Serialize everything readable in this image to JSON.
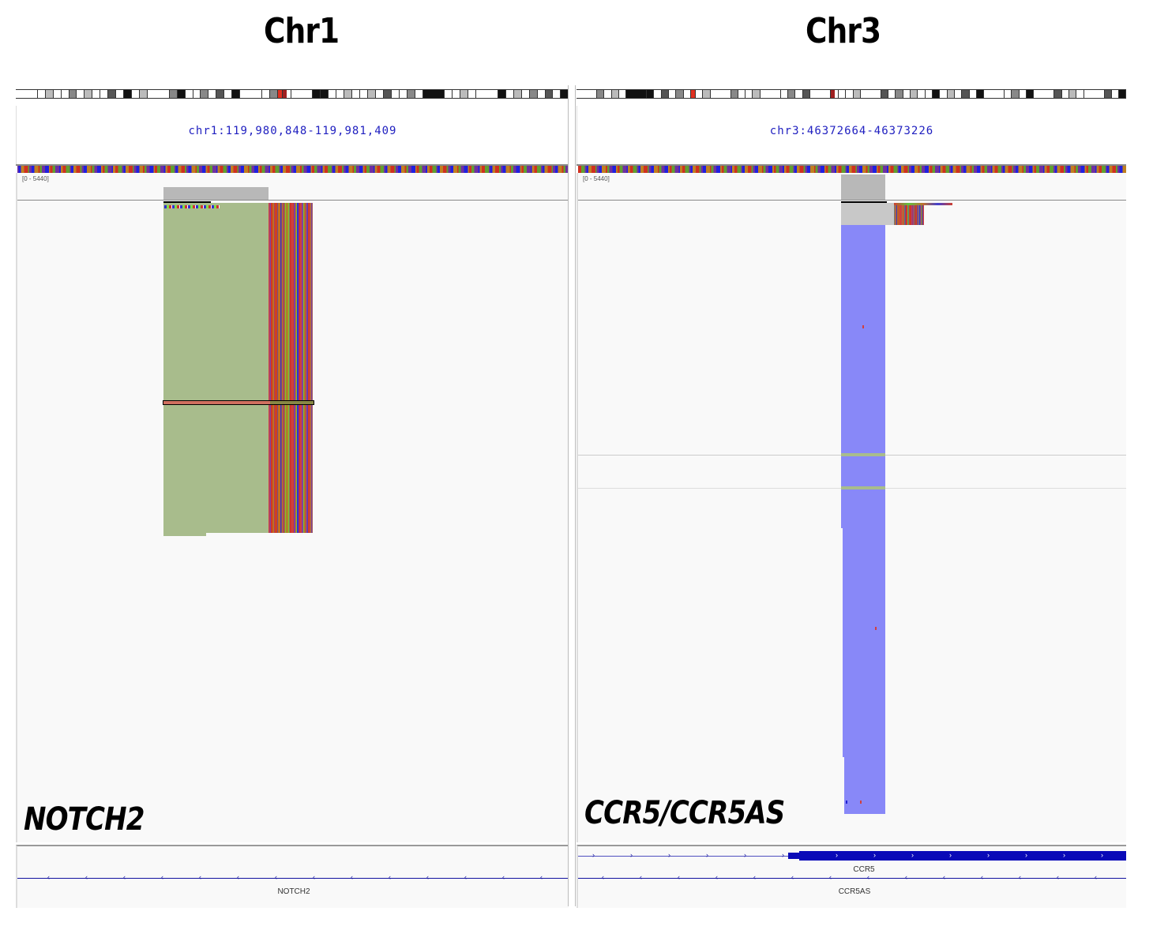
{
  "titles": {
    "left": "Chr1",
    "right": "Chr3"
  },
  "panels": [
    {
      "id": "chr1",
      "locus": "chr1:119,980,848-119,981,409",
      "scale": "[0 - 5440]",
      "gene_label": "NOTCH2",
      "genes": [
        {
          "name": "NOTCH2",
          "strand": "-"
        }
      ],
      "coverage_color": "#b8b8b8",
      "reads_color": "#a8bc8c"
    },
    {
      "id": "chr3",
      "locus": "chr3:46372664-46373226",
      "scale": "[0 - 5440]",
      "gene_label": "CCR5/CCR5AS",
      "genes": [
        {
          "name": "CCR5",
          "strand": "+"
        },
        {
          "name": "CCR5AS",
          "strand": "-"
        }
      ],
      "coverage_color": "#b8b8b8",
      "reads_color": "#8888f8"
    }
  ],
  "colors": {
    "locus_text": "#2020c0",
    "gene_feature": "#0a0ab8",
    "centromere": "#e03020"
  }
}
